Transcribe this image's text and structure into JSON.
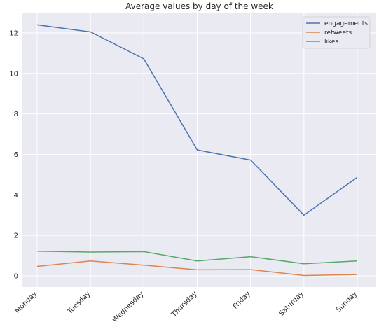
{
  "chart_data": {
    "type": "line",
    "title": "Average values by day of the week",
    "xlabel": "",
    "ylabel": "",
    "categories": [
      "Monday",
      "Tuesday",
      "Wednesday",
      "Thursday",
      "Friday",
      "Saturday",
      "Sunday"
    ],
    "ylim": [
      -0.55,
      13.0
    ],
    "yticks": [
      0,
      2,
      4,
      6,
      8,
      10,
      12
    ],
    "grid": true,
    "legend_position": "top-right",
    "series": [
      {
        "name": "engagements",
        "color": "#4c72b0",
        "values": [
          12.4,
          12.05,
          10.72,
          6.22,
          5.72,
          3.0,
          4.87
        ]
      },
      {
        "name": "retweets",
        "color": "#dd8452",
        "values": [
          0.47,
          0.74,
          0.53,
          0.3,
          0.31,
          0.02,
          0.07
        ]
      },
      {
        "name": "likes",
        "color": "#55a868",
        "values": [
          1.22,
          1.18,
          1.2,
          0.74,
          0.95,
          0.6,
          0.74
        ]
      }
    ]
  }
}
